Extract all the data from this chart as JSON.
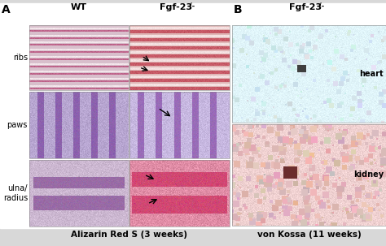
{
  "title_A": "A",
  "title_B": "B",
  "col_wt": "WT",
  "col_fgf": "Fgf-23",
  "fgf_sup": "-/-",
  "row_labels": [
    "ribs",
    "paws",
    "ulna/\nradius"
  ],
  "bottom_label_A": "Alizarin Red S (3 weeks)",
  "bottom_label_B": "von Kossa (11 weeks)",
  "side_labels_B": [
    "heart",
    "kidney"
  ],
  "figure_bg": "#d8d8d8",
  "white_bg": "#ffffff",
  "ribs_wt_bg": [
    0.85,
    0.75,
    0.8
  ],
  "ribs_wt_stripe": [
    0.75,
    0.4,
    0.55
  ],
  "ribs_wt_light": [
    0.95,
    0.9,
    0.92
  ],
  "ribs_fgf_bg": [
    0.88,
    0.72,
    0.72
  ],
  "ribs_fgf_stripe": [
    0.78,
    0.35,
    0.4
  ],
  "ribs_fgf_light": [
    0.96,
    0.88,
    0.88
  ],
  "paws_wt_bg": [
    0.72,
    0.65,
    0.82
  ],
  "paws_wt_bone": [
    0.55,
    0.38,
    0.68
  ],
  "paws_fgf_bg": [
    0.78,
    0.72,
    0.88
  ],
  "paws_fgf_bone": [
    0.6,
    0.42,
    0.72
  ],
  "ulna_wt_bg": [
    0.8,
    0.72,
    0.82
  ],
  "ulna_wt_bone": [
    0.6,
    0.42,
    0.65
  ],
  "ulna_fgf_bg": [
    0.88,
    0.55,
    0.65
  ],
  "ulna_fgf_bone": [
    0.82,
    0.28,
    0.45
  ],
  "heart_bg": [
    0.88,
    0.96,
    0.98
  ],
  "heart_tissue": [
    0.82,
    0.9,
    0.92
  ],
  "kidney_bg": [
    0.94,
    0.82,
    0.82
  ],
  "kidney_tissue": [
    0.88,
    0.72,
    0.72
  ]
}
